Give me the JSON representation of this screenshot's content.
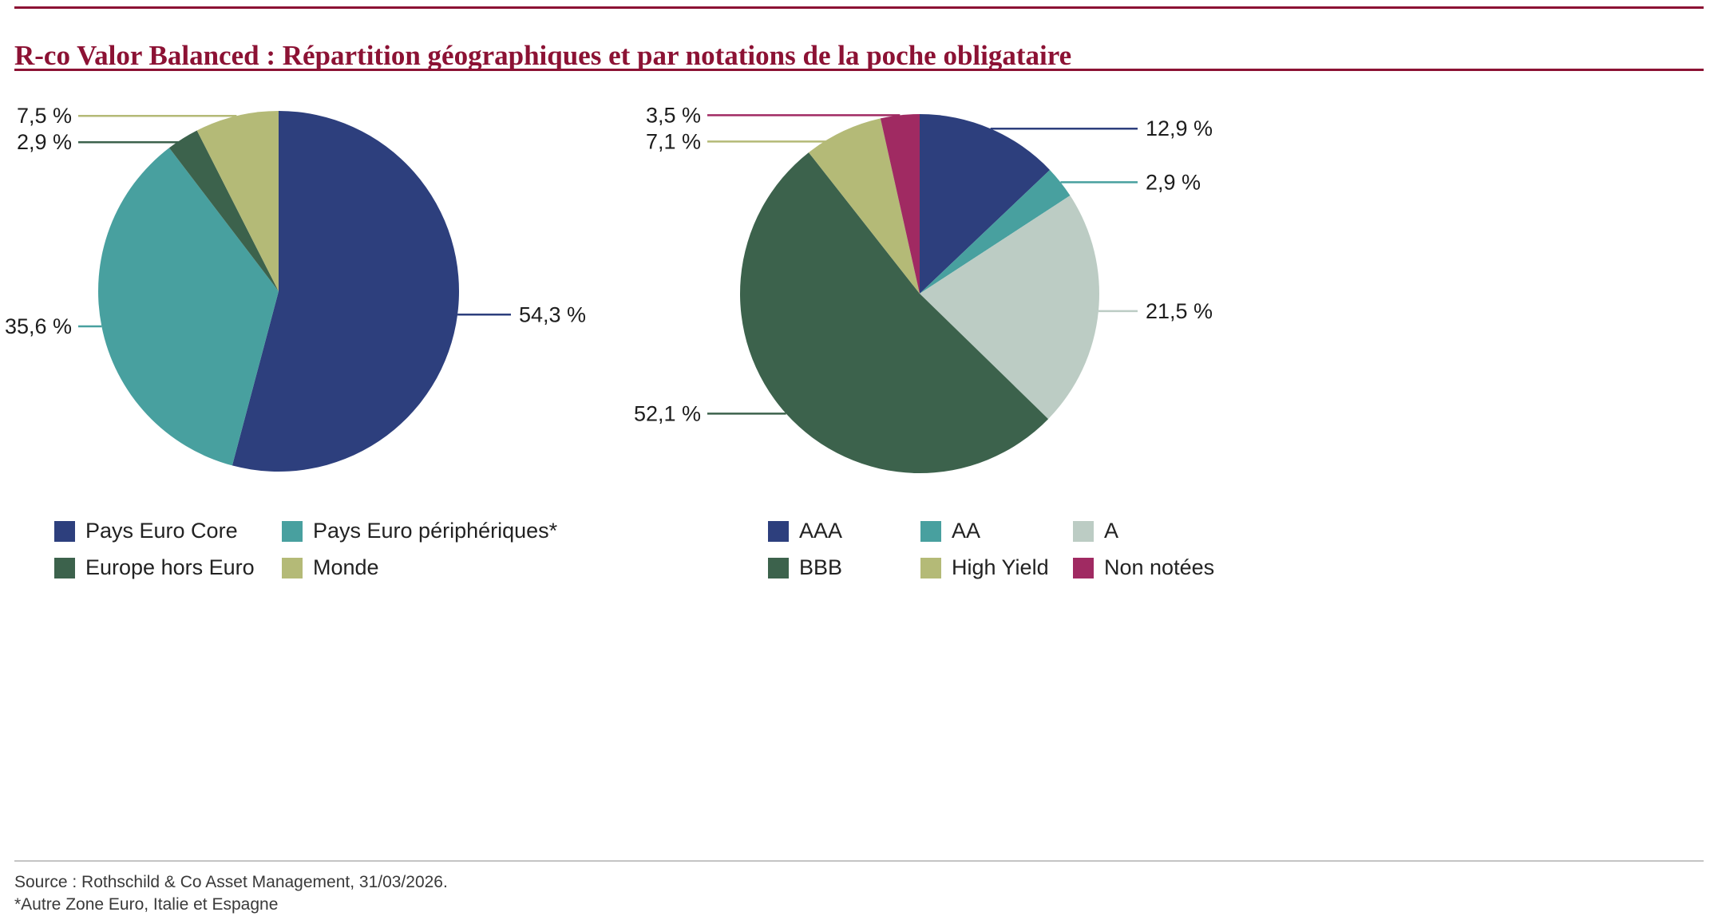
{
  "title": "R-co Valor Balanced : Répartition géographiques et par notations de la poche obligataire",
  "source": {
    "line1": "Source : Rothschild & Co Asset Management, 31/03/2026.",
    "line2": "*Autre Zone Euro, Italie et Espagne"
  },
  "colors": {
    "title_accent": "#8c1234",
    "label_text": "#1d1d1d",
    "source_text": "#3a3a3a",
    "bottom_divider": "#c4c4c4"
  },
  "chart_data": [
    {
      "type": "pie",
      "name": "repartition-geographique",
      "slices": [
        {
          "label": "Pays Euro Core",
          "value": 54.3,
          "display": "54,3 %",
          "color": "#2d3f7d"
        },
        {
          "label": "Pays Euro périphériques*",
          "value": 35.6,
          "display": "35,6 %",
          "color": "#48a09f"
        },
        {
          "label": "Europe hors Euro",
          "value": 2.9,
          "display": "2,9 %",
          "color": "#3c624c"
        },
        {
          "label": "Monde",
          "value": 7.5,
          "display": "7,5 %",
          "color": "#b4ba77"
        }
      ],
      "legend_columns": 2,
      "legend_position": "bottom"
    },
    {
      "type": "pie",
      "name": "repartition-par-notations",
      "slices": [
        {
          "label": "AAA",
          "value": 12.9,
          "display": "12,9 %",
          "color": "#2d3f7d"
        },
        {
          "label": "AA",
          "value": 2.9,
          "display": "2,9 %",
          "color": "#48a09f"
        },
        {
          "label": "A",
          "value": 21.5,
          "display": "21,5 %",
          "color": "#bcccc4"
        },
        {
          "label": "BBB",
          "value": 52.1,
          "display": "52,1 %",
          "color": "#3c624c"
        },
        {
          "label": "High Yield",
          "value": 7.1,
          "display": "7,1 %",
          "color": "#b4ba77"
        },
        {
          "label": "Non notées",
          "value": 3.5,
          "display": "3,5 %",
          "color": "#a02a62"
        }
      ],
      "legend_columns": 3,
      "legend_position": "bottom"
    }
  ]
}
